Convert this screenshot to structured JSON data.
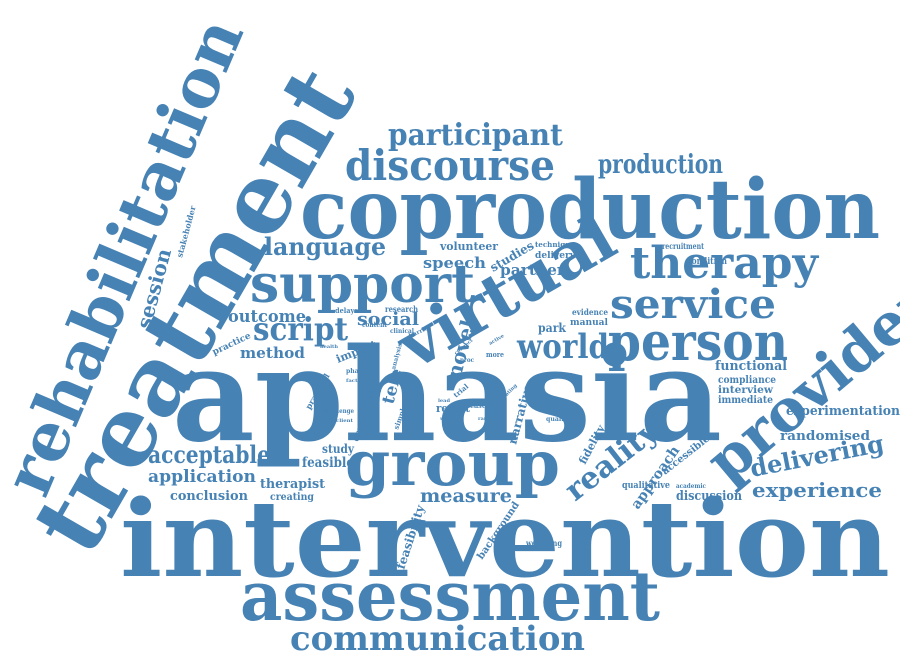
{
  "color": "#4682b4",
  "words": [
    {
      "id": "rehabilitation",
      "text": "rehabilitation"
    },
    {
      "id": "treatment",
      "text": "treatment"
    },
    {
      "id": "intervention",
      "text": "intervention"
    },
    {
      "id": "aphasia",
      "text": "aphasia"
    },
    {
      "id": "coproduction",
      "text": "coproduction"
    },
    {
      "id": "assessment",
      "text": "assessment"
    },
    {
      "id": "virtual",
      "text": "virtual"
    },
    {
      "id": "provider",
      "text": "provider"
    },
    {
      "id": "group",
      "text": "group"
    },
    {
      "id": "support",
      "text": "support"
    },
    {
      "id": "person",
      "text": "person"
    },
    {
      "id": "discourse",
      "text": "discourse"
    },
    {
      "id": "participant",
      "text": "participant"
    },
    {
      "id": "therapy",
      "text": "therapy"
    },
    {
      "id": "service",
      "text": "service"
    },
    {
      "id": "communication",
      "text": "communication"
    },
    {
      "id": "production",
      "text": "production"
    },
    {
      "id": "script",
      "text": "script"
    },
    {
      "id": "world",
      "text": "world"
    },
    {
      "id": "reality",
      "text": "reality"
    },
    {
      "id": "language",
      "text": "language"
    },
    {
      "id": "acceptable",
      "text": "acceptable"
    },
    {
      "id": "delivering",
      "text": "delivering"
    },
    {
      "id": "experience",
      "text": "experience"
    },
    {
      "id": "measure",
      "text": "measure"
    },
    {
      "id": "application",
      "text": "application"
    },
    {
      "id": "session",
      "text": "session"
    },
    {
      "id": "outcome",
      "text": "outcome"
    },
    {
      "id": "method",
      "text": "method"
    },
    {
      "id": "social",
      "text": "social"
    },
    {
      "id": "novel",
      "text": "novel"
    },
    {
      "id": "tele",
      "text": "tele"
    },
    {
      "id": "speech",
      "text": "speech"
    },
    {
      "id": "partner",
      "text": "partner"
    },
    {
      "id": "studies",
      "text": "studies"
    },
    {
      "id": "volunteer",
      "text": "volunteer"
    },
    {
      "id": "experimentation",
      "text": "experimentation"
    },
    {
      "id": "randomised",
      "text": "randomised"
    },
    {
      "id": "functional",
      "text": "functional"
    },
    {
      "id": "compliance",
      "text": "compliance"
    },
    {
      "id": "interview",
      "text": "interview"
    },
    {
      "id": "immediate",
      "text": "immediate"
    },
    {
      "id": "condition",
      "text": "condition"
    },
    {
      "id": "recruitment",
      "text": "recruitment"
    },
    {
      "id": "approach",
      "text": "approach"
    },
    {
      "id": "fidelity",
      "text": "fidelity"
    },
    {
      "id": "accessible",
      "text": "accessible"
    },
    {
      "id": "qualitative",
      "text": "qualitative"
    },
    {
      "id": "discussion",
      "text": "discussion"
    },
    {
      "id": "conclusion",
      "text": "conclusion"
    },
    {
      "id": "creating",
      "text": "creating"
    },
    {
      "id": "therapist",
      "text": "therapist"
    },
    {
      "id": "feasible",
      "text": "feasible"
    },
    {
      "id": "study",
      "text": "study"
    },
    {
      "id": "feasibility",
      "text": "feasibility"
    },
    {
      "id": "background",
      "text": "background"
    },
    {
      "id": "wellbeing",
      "text": "wellbeing"
    },
    {
      "id": "narrative",
      "text": "narrative"
    },
    {
      "id": "result",
      "text": "result"
    },
    {
      "id": "consensus",
      "text": "consensus"
    },
    {
      "id": "impact",
      "text": "impact"
    },
    {
      "id": "practice",
      "text": "practice"
    },
    {
      "id": "practical",
      "text": "practical"
    },
    {
      "id": "park",
      "text": "park"
    },
    {
      "id": "manual",
      "text": "manual"
    },
    {
      "id": "evidence",
      "text": "evidence"
    },
    {
      "id": "delivery",
      "text": "delivery"
    },
    {
      "id": "technique",
      "text": "technique"
    },
    {
      "id": "stakeholder",
      "text": "stakeholder"
    },
    {
      "id": "research",
      "text": "research"
    },
    {
      "id": "delayed",
      "text": "delayed"
    },
    {
      "id": "content",
      "text": "content"
    },
    {
      "id": "clinical",
      "text": "clinical"
    },
    {
      "id": "barrier",
      "text": "barrier"
    },
    {
      "id": "analysis",
      "text": "analysis"
    },
    {
      "id": "phase",
      "text": "phase"
    },
    {
      "id": "factor",
      "text": "factor"
    },
    {
      "id": "challenge",
      "text": "challenge"
    },
    {
      "id": "client",
      "text": "client"
    },
    {
      "id": "more",
      "text": "more"
    },
    {
      "id": "trial",
      "text": "trial"
    },
    {
      "id": "case",
      "text": "case"
    },
    {
      "id": "simple",
      "text": "simple"
    },
    {
      "id": "testing",
      "text": "testing"
    },
    {
      "id": "quality",
      "text": "quality"
    },
    {
      "id": "month",
      "text": "month"
    },
    {
      "id": "academic",
      "text": "academic"
    },
    {
      "id": "connect",
      "text": "connect"
    },
    {
      "id": "active",
      "text": "active"
    },
    {
      "id": "health",
      "text": "health"
    },
    {
      "id": "effect",
      "text": "effect"
    },
    {
      "id": "range",
      "text": "range"
    },
    {
      "id": "user",
      "text": "user"
    },
    {
      "id": "proc",
      "text": "proc"
    },
    {
      "id": "rating",
      "text": "rating"
    },
    {
      "id": "lead",
      "text": "lead"
    }
  ]
}
